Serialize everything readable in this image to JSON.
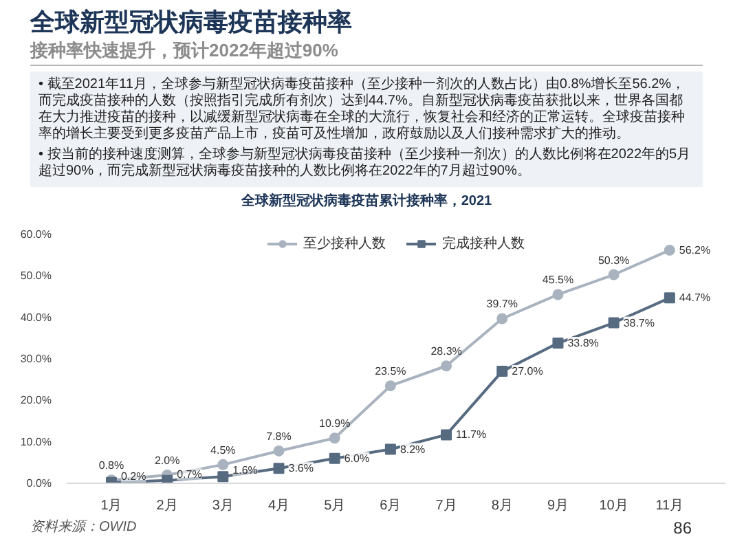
{
  "chart_data": {
    "type": "line",
    "title": "全球新型冠状病毒疫苗接种率",
    "subtitle": "接种率快速提升，预计2022年超过90%",
    "annotations": [
      "• 截至2021年11月，全球参与新型冠状病毒疫苗接种（至少接种一剂次的人数占比）由0.8%增长至56.2%，而完成疫苗接种的人数（按照指引完成所有剂次）达到44.7%。自新型冠状病毒疫苗获批以来，世界各国都在大力推进疫苗的接种，以减缓新型冠状病毒在全球的大流行，恢复社会和经济的正常运转。全球疫苗接种率的增长主要受到更多疫苗产品上市，疫苗可及性增加，政府鼓励以及人们接种需求扩大的推动。",
      "• 按当前的接种速度测算，全球参与新型冠状病毒疫苗接种（至少接种一剂次）的人数比例将在2022年的5月超过90%，而完成新型冠状病毒疫苗接种的人数比例将在2022年的7月超过90%。",
      "全球新型冠状病毒疫苗累计接种率，2021",
      "资料来源：OWID",
      "86"
    ],
    "categories": [
      "1月",
      "2月",
      "3月",
      "4月",
      "5月",
      "6月",
      "7月",
      "8月",
      "9月",
      "10月",
      "11月"
    ],
    "series": [
      {
        "name": "至少接种人数",
        "color": "#a9b3bf",
        "marker": "circle",
        "values": [
          0.8,
          2.0,
          4.5,
          7.8,
          10.9,
          23.5,
          28.3,
          39.7,
          45.5,
          50.3,
          56.2
        ],
        "value_labels": [
          "0.8%",
          "2.0%",
          "4.5%",
          "7.8%",
          "10.9%",
          "23.5%",
          "28.3%",
          "39.7%",
          "45.5%",
          "50.3%",
          "56.2%"
        ]
      },
      {
        "name": "完成接种人数",
        "color": "#566a80",
        "marker": "square",
        "values": [
          0.2,
          0.7,
          1.6,
          3.6,
          6.0,
          8.2,
          11.7,
          27.0,
          33.8,
          38.7,
          44.7
        ],
        "value_labels": [
          "0.2%",
          "0.7%",
          "1.6%",
          "3.6%",
          "6.0%",
          "8.2%",
          "11.7%",
          "27.0%",
          "33.8%",
          "38.7%",
          "44.7%"
        ]
      }
    ],
    "ylim": [
      0,
      60
    ],
    "yticks": [
      {
        "value": 0,
        "label": "0.0%"
      },
      {
        "value": 10,
        "label": "10.0%"
      },
      {
        "value": 20,
        "label": "20.0%"
      },
      {
        "value": 30,
        "label": "30.0%"
      },
      {
        "value": 40,
        "label": "40.0%"
      },
      {
        "value": 50,
        "label": "50.0%"
      },
      {
        "value": 60,
        "label": "60.0%"
      }
    ],
    "legend": "top"
  }
}
